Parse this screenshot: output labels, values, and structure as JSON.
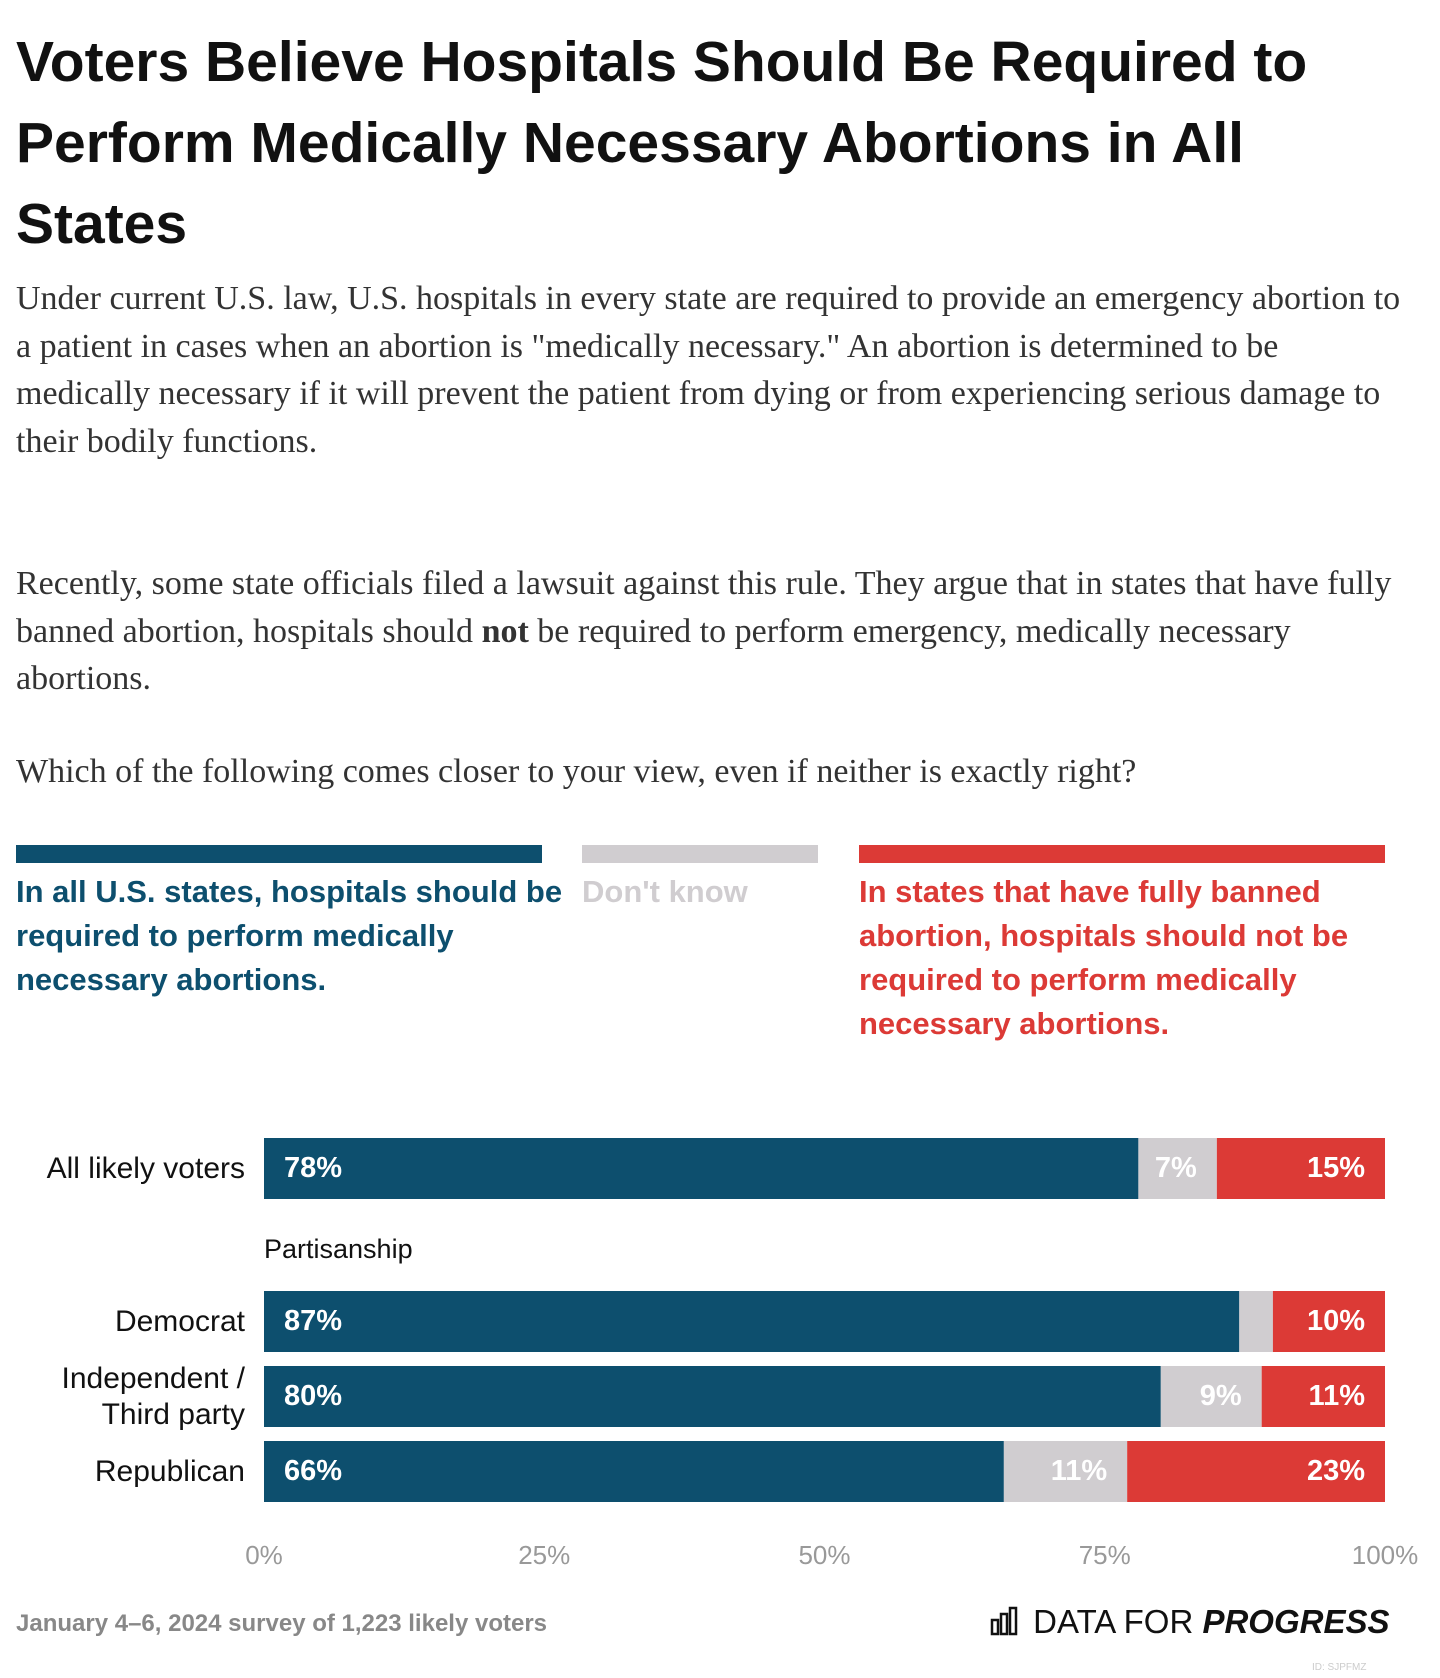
{
  "title": "Voters Believe Hospitals Should Be Required to Perform Medically Necessary Abortions in All States",
  "description": [
    "Under current U.S. law, U.S. hospitals in every state are required to provide an emergency abortion to a patient in cases when an abortion is \"medically necessary.\" An abortion is determined to be medically necessary if it will prevent the patient from dying or from experiencing serious damage to their bodily functions.",
    [
      "Recently, some state officials filed a lawsuit against this rule. They argue that in states that have fully banned abortion, hospitals should ",
      "not",
      " be required to perform emergency, medically necessary abortions."
    ],
    "Which of the following comes closer to your view, even if neither is exactly right?"
  ],
  "chart_data": {
    "type": "stacked_bar_horizontal",
    "categories": [
      "All likely voters",
      "Democrat",
      "Independent / Third party",
      "Republican"
    ],
    "group_label": "Partisanship",
    "series": [
      {
        "name": "In all U.S. states, hospitals should be required to perform medically necessary abortions.",
        "color": "#0d4f6e",
        "values": [
          78,
          87,
          80,
          66
        ],
        "value_labels": [
          "78%",
          "87%",
          "80%",
          "66%"
        ]
      },
      {
        "name": "Don't know",
        "color": "#d0cdd0",
        "values": [
          7,
          3,
          9,
          11
        ],
        "value_labels": [
          "7%",
          null,
          "9%",
          "11%"
        ]
      },
      {
        "name": "In states that have fully banned abortion, hospitals should not be required to perform medically necessary abortions.",
        "color": "#dc3a36",
        "values": [
          15,
          10,
          11,
          23
        ],
        "value_labels": [
          "15%",
          "10%",
          "11%",
          "23%"
        ]
      }
    ],
    "xlim": [
      0,
      100
    ],
    "xticks": [
      {
        "value": 0,
        "label": "0%"
      },
      {
        "value": 25,
        "label": "25%"
      },
      {
        "value": 50,
        "label": "50%"
      },
      {
        "value": 75,
        "label": "75%"
      },
      {
        "value": 100,
        "label": "100%"
      }
    ]
  },
  "footer": {
    "source": "January 4–6, 2024 survey of 1,223 likely voters",
    "logo": [
      "DATA FOR ",
      "PROGRESS"
    ],
    "id": "ID: SJPFMZ"
  }
}
